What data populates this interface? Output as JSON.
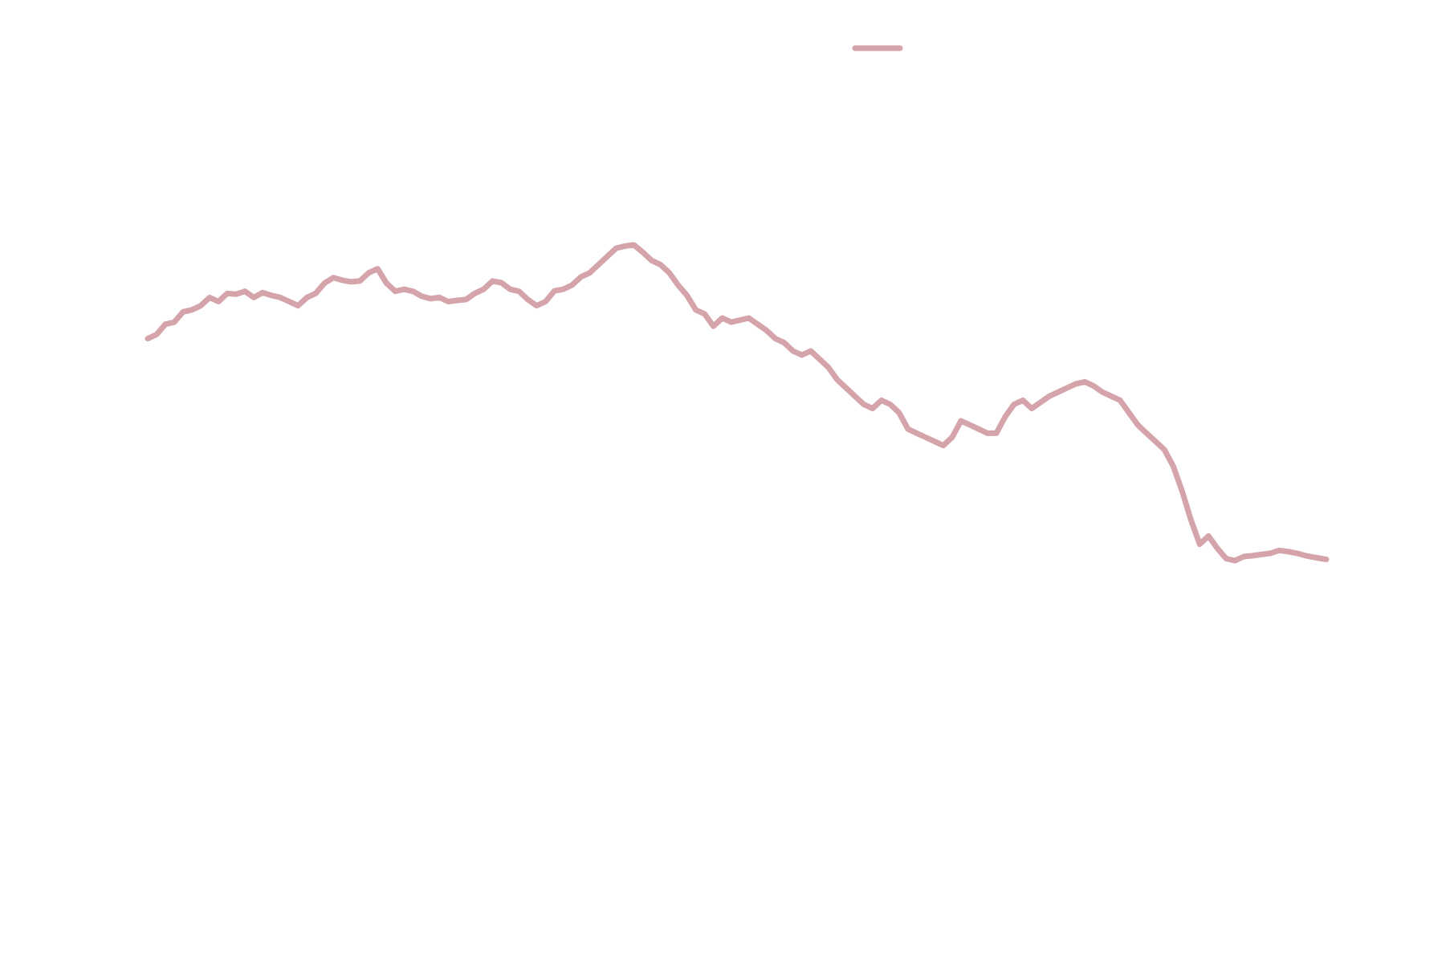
{
  "chart_data": {
    "type": "line",
    "title": "",
    "xlabel": "",
    "ylabel": "",
    "axes_visible": false,
    "grid": false,
    "legend": {
      "placement": "top-center",
      "entries": [
        {
          "label": "",
          "color": "#d4a4aa"
        }
      ]
    },
    "xlim": [
      0,
      1
    ],
    "ylim": [
      0,
      1
    ],
    "series": [
      {
        "color": "#d4a4aa",
        "x": [
          0.0,
          0.0075,
          0.015,
          0.0225,
          0.03,
          0.0375,
          0.045,
          0.0525,
          0.06,
          0.0675,
          0.075,
          0.0825,
          0.09,
          0.0975,
          0.105,
          0.1125,
          0.12,
          0.1275,
          0.135,
          0.1425,
          0.15,
          0.1575,
          0.165,
          0.1725,
          0.18,
          0.1875,
          0.195,
          0.2025,
          0.21,
          0.2175,
          0.225,
          0.2325,
          0.24,
          0.2475,
          0.255,
          0.2625,
          0.27,
          0.2775,
          0.285,
          0.2925,
          0.3,
          0.3075,
          0.315,
          0.3225,
          0.33,
          0.3375,
          0.345,
          0.3525,
          0.36,
          0.3675,
          0.375,
          0.3825,
          0.39,
          0.3975,
          0.405,
          0.4125,
          0.42,
          0.4275,
          0.435,
          0.4425,
          0.45,
          0.4575,
          0.465,
          0.4725,
          0.48,
          0.4875,
          0.495,
          0.5025,
          0.51,
          0.5175,
          0.525,
          0.5325,
          0.54,
          0.5475,
          0.555,
          0.5625,
          0.57,
          0.5775,
          0.585,
          0.5925,
          0.6,
          0.6075,
          0.615,
          0.6225,
          0.63,
          0.6375,
          0.645,
          0.6525,
          0.66,
          0.6675,
          0.675,
          0.6825,
          0.69,
          0.6975,
          0.705,
          0.7125,
          0.72,
          0.7275,
          0.735,
          0.7425,
          0.75,
          0.7575,
          0.765,
          0.7725,
          0.78,
          0.7875,
          0.795,
          0.8025,
          0.81,
          0.8175,
          0.825,
          0.8325,
          0.84,
          0.8475,
          0.855,
          0.8625,
          0.87,
          0.8775,
          0.885,
          0.8925,
          0.9,
          0.9075,
          0.915,
          0.9225,
          0.93,
          0.9375,
          0.945,
          0.9525,
          0.96,
          0.9675,
          0.975,
          0.9825,
          0.99,
          1.0
        ],
        "y": [
          0.7,
          0.71,
          0.735,
          0.74,
          0.765,
          0.77,
          0.78,
          0.8,
          0.79,
          0.81,
          0.808,
          0.815,
          0.8,
          0.812,
          0.805,
          0.8,
          0.79,
          0.78,
          0.8,
          0.81,
          0.835,
          0.848,
          0.842,
          0.838,
          0.84,
          0.86,
          0.87,
          0.835,
          0.815,
          0.82,
          0.815,
          0.803,
          0.797,
          0.8,
          0.79,
          0.793,
          0.795,
          0.81,
          0.82,
          0.84,
          0.836,
          0.82,
          0.815,
          0.795,
          0.78,
          0.79,
          0.816,
          0.82,
          0.83,
          0.85,
          0.86,
          0.88,
          0.9,
          0.92,
          0.925,
          0.928,
          0.91,
          0.89,
          0.88,
          0.86,
          0.83,
          0.805,
          0.77,
          0.76,
          0.73,
          0.75,
          0.74,
          0.745,
          0.75,
          0.735,
          0.72,
          0.7,
          0.69,
          0.67,
          0.66,
          0.67,
          0.65,
          0.63,
          0.6,
          0.58,
          0.56,
          0.54,
          0.53,
          0.55,
          0.54,
          0.52,
          0.48,
          0.47,
          0.46,
          0.45,
          0.44,
          0.46,
          0.5,
          0.49,
          0.48,
          0.47,
          0.47,
          0.51,
          0.54,
          0.55,
          0.53,
          0.545,
          0.56,
          0.57,
          0.58,
          0.59,
          0.595,
          0.585,
          0.57,
          0.56,
          0.55,
          0.52,
          0.49,
          0.47,
          0.45,
          0.43,
          0.39,
          0.33,
          0.26,
          0.2,
          0.22,
          0.19,
          0.165,
          0.16,
          0.17,
          0.172,
          0.175,
          0.178,
          0.185,
          0.182,
          0.178,
          0.172,
          0.168,
          0.163
        ]
      }
    ]
  }
}
